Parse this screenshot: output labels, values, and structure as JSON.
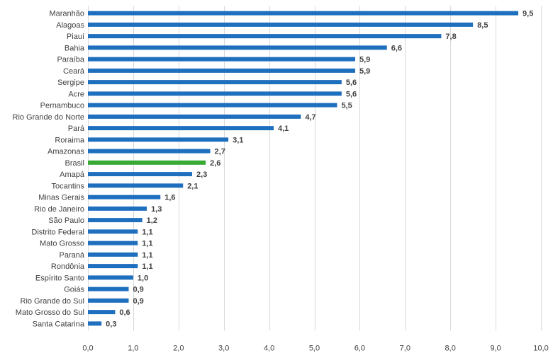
{
  "chart_data": {
    "type": "bar",
    "orientation": "horizontal",
    "title": "",
    "xlabel": "",
    "ylabel": "",
    "xlim": [
      0,
      10
    ],
    "grid": true,
    "legend": "none",
    "categories": [
      "Maranhão",
      "Alagoas",
      "Piauí",
      "Bahia",
      "Paraíba",
      "Ceará",
      "Sergipe",
      "Acre",
      "Pernambuco",
      "Rio Grande do Norte",
      "Pará",
      "Roraima",
      "Amazonas",
      "Brasil",
      "Amapá",
      "Tocantins",
      "Minas Gerais",
      "Rio de Janeiro",
      "São Paulo",
      "Distrito Federal",
      "Mato Grosso",
      "Paraná",
      "Rondônia",
      "Espírito Santo",
      "Goiás",
      "Rio Grande do Sul",
      "Mato Grosso do Sul",
      "Santa Catarina"
    ],
    "values": [
      9.5,
      8.5,
      7.8,
      6.6,
      5.9,
      5.9,
      5.6,
      5.6,
      5.5,
      4.7,
      4.1,
      3.1,
      2.7,
      2.6,
      2.3,
      2.1,
      1.6,
      1.3,
      1.2,
      1.1,
      1.1,
      1.1,
      1.1,
      1.0,
      0.9,
      0.9,
      0.6,
      0.3
    ],
    "value_labels": [
      "9,5",
      "8,5",
      "7,8",
      "6,6",
      "5,9",
      "5,9",
      "5,6",
      "5,6",
      "5,5",
      "4,7",
      "4,1",
      "3,1",
      "2,7",
      "2,6",
      "2,3",
      "2,1",
      "1,6",
      "1,3",
      "1,2",
      "1,1",
      "1,1",
      "1,1",
      "1,1",
      "1,0",
      "0,9",
      "0,9",
      "0,6",
      "0,3"
    ],
    "x_ticks": [
      0,
      1,
      2,
      3,
      4,
      5,
      6,
      7,
      8,
      9,
      10
    ],
    "x_tick_labels": [
      "0,0",
      "1,0",
      "2,0",
      "3,0",
      "4,0",
      "5,0",
      "6,0",
      "7,0",
      "8,0",
      "9,0",
      "10,0"
    ],
    "highlight_category": "Brasil",
    "colors": {
      "bar": "#1f6fbf",
      "highlight": "#3aaa35"
    }
  }
}
